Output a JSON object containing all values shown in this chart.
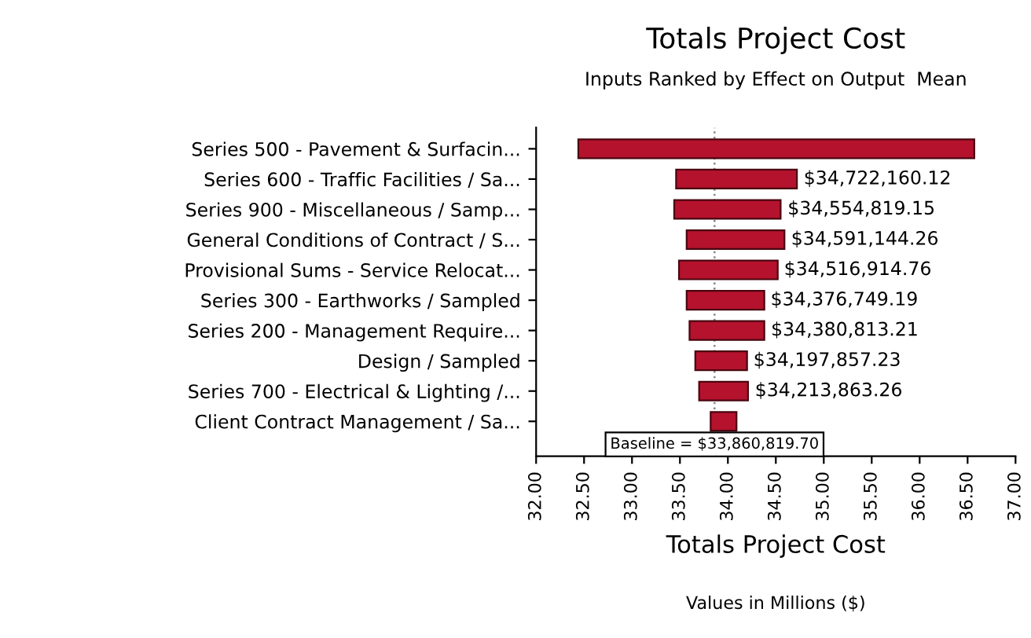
{
  "chart_data": {
    "type": "bar",
    "orientation": "horizontal",
    "title": "Totals Project Cost",
    "subtitle": "Inputs Ranked by Effect on Output  Mean",
    "xlabel": "Totals Project Cost",
    "annotations": [
      "Values in Millions ($)",
      {
        "text": "$34,722,160.12",
        "x": 34.72216012,
        "y": "Series 600 - Traffic Facilities / Sa..."
      },
      {
        "text": "$34,554,819.15",
        "x": 34.55481915,
        "y": "Series 900 - Miscellaneous / Samp..."
      },
      {
        "text": "$34,591,144.26",
        "x": 34.59114426,
        "y": "General Conditions of Contract / S..."
      },
      {
        "text": "$34,516,914.76",
        "x": 34.51691476,
        "y": "Provisional Sums - Service Relocat..."
      },
      {
        "text": "$34,376,749.19",
        "x": 34.37674919,
        "y": "Series 300 - Earthworks / Sampled"
      },
      {
        "text": "$34,380,813.21",
        "x": 34.38081321,
        "y": "Series 200 - Management Require..."
      },
      {
        "text": "$34,197,857.23",
        "x": 34.19785723,
        "y": "Design / Sampled"
      },
      {
        "text": "$34,213,863.26",
        "x": 34.21386326,
        "y": "Series 700 - Electrical & Lighting /..."
      }
    ],
    "categories": [
      "Series 500 - Pavement & Surfacin...",
      "Series 600 - Traffic Facilities / Sa...",
      "Series 900 - Miscellaneous / Samp...",
      "General Conditions of Contract / S...",
      "Provisional Sums - Service Relocat...",
      "Series 300 - Earthworks / Sampled",
      "Series 200 - Management Require...",
      "Design / Sampled",
      "Series 700 - Electrical & Lighting /...",
      "Client Contract Management / Sa..."
    ],
    "base": [
      32.44,
      33.46,
      33.44,
      33.57,
      33.49,
      33.57,
      33.6,
      33.66,
      33.7,
      33.82
    ],
    "values": [
      4.13,
      1.26,
      1.11,
      1.02,
      1.03,
      0.81,
      0.78,
      0.54,
      0.51,
      0.27
    ],
    "color": "#b5122d",
    "xlim": [
      32,
      37
    ],
    "xticks": [
      {
        "value": 32,
        "label": "32.00"
      },
      {
        "value": 32.5,
        "label": "32.50"
      },
      {
        "value": 33,
        "label": "33.00"
      },
      {
        "value": 33.5,
        "label": "33.50"
      },
      {
        "value": 34,
        "label": "34.00"
      },
      {
        "value": 34.5,
        "label": "34.50"
      },
      {
        "value": 35,
        "label": "35.00"
      },
      {
        "value": 35.5,
        "label": "35.50"
      },
      {
        "value": 36,
        "label": "36.00"
      },
      {
        "value": 36.5,
        "label": "36.50"
      },
      {
        "value": 37,
        "label": "37.00"
      }
    ],
    "ref_lines": [
      {
        "axis": "x",
        "value": 33.8608197,
        "label": "Baseline = $33,860,819.70",
        "line_style": "dotted",
        "color": "#888888"
      }
    ],
    "grid": false,
    "legend": false
  }
}
